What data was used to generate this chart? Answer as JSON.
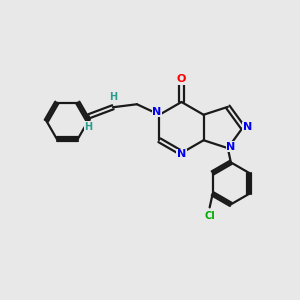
{
  "background_color": "#e8e8e8",
  "bond_color": "#1a1a1a",
  "N_color": "#0000ee",
  "O_color": "#ff0000",
  "Cl_color": "#00aa00",
  "H_color": "#2a9d8f",
  "line_width": 1.6,
  "figsize": [
    3.0,
    3.0
  ],
  "dpi": 100,
  "xlim": [
    0,
    10
  ],
  "ylim": [
    0,
    10
  ]
}
